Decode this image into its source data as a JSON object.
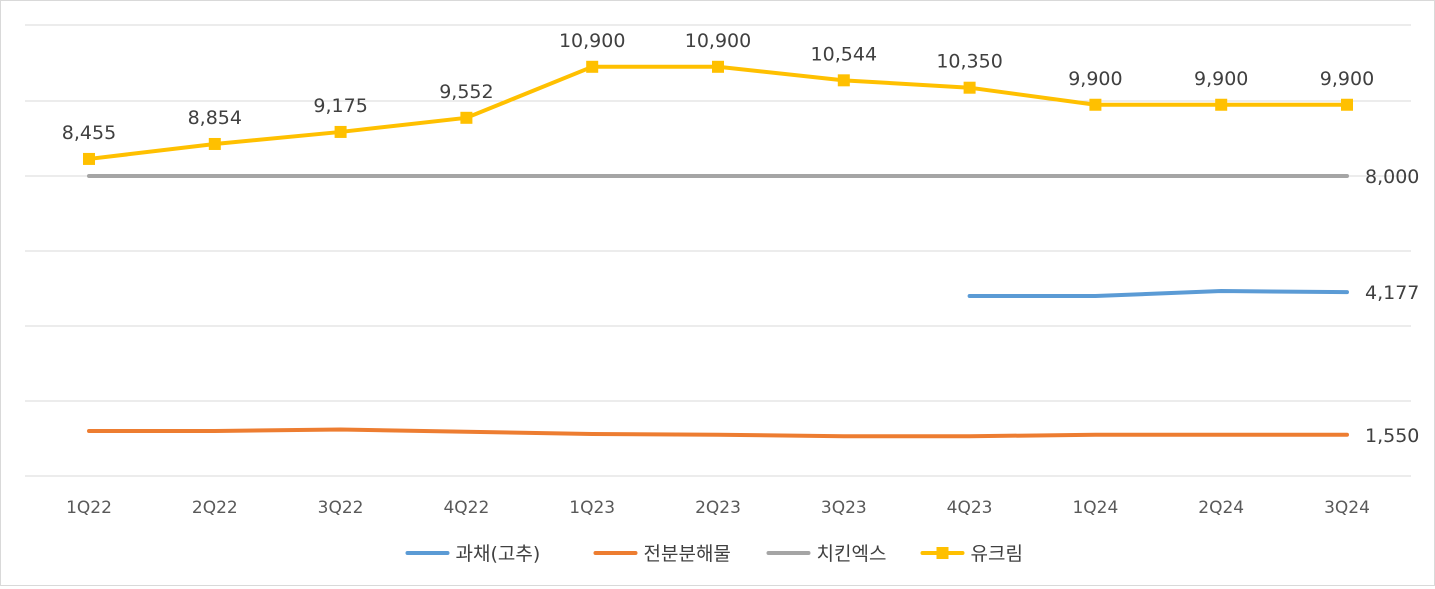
{
  "chart_data": {
    "type": "line",
    "title": "",
    "xlabel": "",
    "ylabel": "",
    "categories": [
      "1Q22",
      "2Q22",
      "3Q22",
      "4Q22",
      "1Q23",
      "2Q23",
      "3Q23",
      "4Q23",
      "1Q24",
      "2Q24",
      "3Q24"
    ],
    "grid": true,
    "legend_position": "bottom",
    "series": [
      {
        "name": "과채(고추)",
        "color": "#5b9bd5",
        "marker": "none",
        "values": [
          null,
          null,
          null,
          null,
          null,
          null,
          null,
          4100,
          4100,
          4200,
          4177
        ],
        "labels": {
          "10": "4,177"
        }
      },
      {
        "name": "전분분해물",
        "color": "#ed7d31",
        "marker": "none",
        "values": [
          1600,
          1600,
          1620,
          1590,
          1560,
          1550,
          1530,
          1530,
          1550,
          1550,
          1550
        ],
        "labels": {
          "10": "1,550"
        }
      },
      {
        "name": "치킨엑스",
        "color": "#a5a5a5",
        "marker": "none",
        "values": [
          8000,
          8000,
          8000,
          8000,
          8000,
          8000,
          8000,
          8000,
          8000,
          8000,
          8000
        ],
        "labels": {
          "10": "8,000"
        }
      },
      {
        "name": "유크림",
        "color": "#ffc000",
        "marker": "square",
        "values": [
          8455,
          8854,
          9175,
          9552,
          10900,
          10900,
          10544,
          10350,
          9900,
          9900,
          9900
        ],
        "labels": {
          "0": "8,455",
          "1": "8,854",
          "2": "9,175",
          "3": "9,552",
          "4": "10,900",
          "5": "10,900",
          "6": "10,544",
          "7": "10,350",
          "8": "9,900",
          "9": "9,900",
          "10": "9,900"
        }
      }
    ]
  }
}
